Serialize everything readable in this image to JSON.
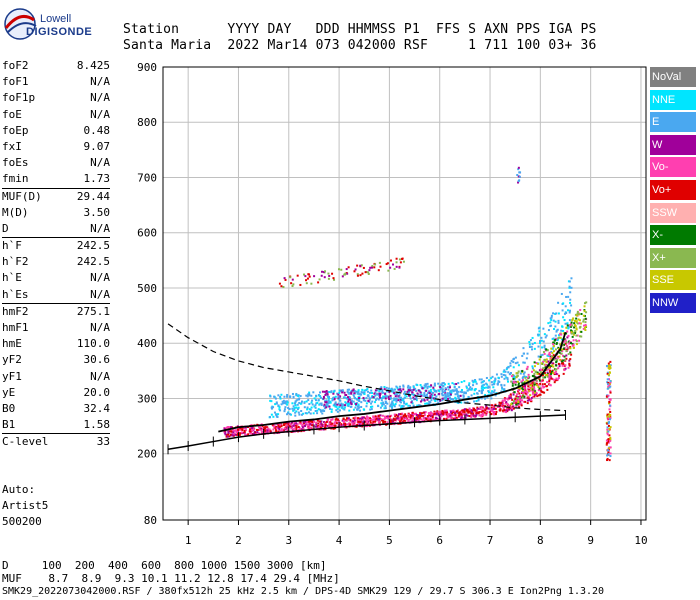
{
  "logo": {
    "brand": "Lowell",
    "product": "DIGISONDE"
  },
  "header": {
    "labels": "Station      YYYY DAY   DDD HHMMSS P1  FFS S AXN PPS IGA PS",
    "values": "Santa Maria  2022 Mar14 073 042000 RSF     1 711 100 03+ 36"
  },
  "params": [
    {
      "name": "foF2",
      "value": "8.425"
    },
    {
      "name": "foF1",
      "value": "N/A"
    },
    {
      "name": "foF1p",
      "value": "N/A"
    },
    {
      "name": "foE",
      "value": "N/A"
    },
    {
      "name": "foEp",
      "value": "0.48"
    },
    {
      "name": "fxI",
      "value": "9.07"
    },
    {
      "name": "foEs",
      "value": "N/A"
    },
    {
      "name": "fmin",
      "value": "1.73"
    },
    {
      "name": "MUF(D)",
      "value": "29.44",
      "sep": true
    },
    {
      "name": "M(D)",
      "value": "3.50"
    },
    {
      "name": "D",
      "value": "N/A"
    },
    {
      "name": "h`F",
      "value": "242.5",
      "sep": true
    },
    {
      "name": "h`F2",
      "value": "242.5"
    },
    {
      "name": "h`E",
      "value": "N/A"
    },
    {
      "name": "h`Es",
      "value": "N/A"
    },
    {
      "name": "hmF2",
      "value": "275.1",
      "sep": true
    },
    {
      "name": "hmF1",
      "value": "N/A"
    },
    {
      "name": "hmE",
      "value": "110.0"
    },
    {
      "name": "yF2",
      "value": "30.6"
    },
    {
      "name": "yF1",
      "value": "N/A"
    },
    {
      "name": "yE",
      "value": "20.0"
    },
    {
      "name": "B0",
      "value": "32.4"
    },
    {
      "name": "B1",
      "value": "1.58"
    },
    {
      "name": "C-level",
      "value": "33",
      "sep": true
    }
  ],
  "auto": {
    "line1": "Auto:",
    "line2": "Artist5",
    "line3": "500200"
  },
  "legend": [
    {
      "label": "NoVal",
      "color": "#808080"
    },
    {
      "label": "NNE",
      "color": "#00e5ff"
    },
    {
      "label": "E",
      "color": "#4aa8f0"
    },
    {
      "label": "W",
      "color": "#a0009a"
    },
    {
      "label": "Vo-",
      "color": "#ff3fb0"
    },
    {
      "label": "Vo+",
      "color": "#e00000"
    },
    {
      "label": "SSW",
      "color": "#ffb0b0"
    },
    {
      "label": "X-",
      "color": "#007a00"
    },
    {
      "label": "X+",
      "color": "#8ab850"
    },
    {
      "label": "SSE",
      "color": "#c8c800"
    },
    {
      "label": "NNW",
      "color": "#2020c8"
    }
  ],
  "footer": {
    "line1": "D     100  200  400  600  800 1000 1500 3000 [km]",
    "line2": "MUF    8.7  8.9  9.3 10.1 11.2 12.8 17.4 29.4 [MHz]",
    "line3": "SMK29_2022073042000.RSF / 380fx512h 25 kHz 2.5 km / DPS-4D SMK29 129 / 29.7 S 306.3 E Ion2Png 1.3.20"
  },
  "chart_data": {
    "type": "scatter",
    "xlim": [
      0.5,
      10.1
    ],
    "ylim": [
      80,
      900
    ],
    "xticks": [
      1,
      2,
      3,
      4,
      5,
      6,
      7,
      8,
      9,
      10
    ],
    "yticks": [
      80,
      200,
      300,
      400,
      500,
      600,
      700,
      800,
      900
    ],
    "grid": true,
    "legend_position": "right",
    "trace_F2": {
      "x": [
        1.6,
        2.0,
        2.5,
        3.0,
        3.5,
        4.0,
        4.5,
        5.0,
        5.5,
        6.0,
        6.5,
        7.0,
        7.5,
        8.0,
        8.2,
        8.4,
        8.5
      ],
      "y": [
        240,
        248,
        252,
        258,
        262,
        268,
        272,
        278,
        284,
        290,
        298,
        305,
        318,
        340,
        365,
        390,
        420
      ]
    },
    "profile_line": {
      "x": [
        0.6,
        1.0,
        1.5,
        2.0,
        2.5,
        3.0,
        3.5,
        4.0,
        4.5,
        5.0,
        5.5,
        6.0,
        6.5,
        7.0,
        7.5,
        8.0,
        8.5
      ],
      "y": [
        208,
        214,
        222,
        230,
        236,
        240,
        244,
        248,
        251,
        254,
        257,
        260,
        262,
        264,
        266,
        268,
        270
      ]
    },
    "model_curve": {
      "x": [
        0.6,
        1.0,
        1.5,
        2.0,
        2.5,
        3.0,
        3.5,
        4.0,
        4.5,
        5.0,
        5.5,
        6.0,
        6.5,
        7.0,
        7.5,
        8.0,
        8.5
      ],
      "y": [
        435,
        410,
        385,
        368,
        356,
        348,
        340,
        332,
        322,
        314,
        305,
        298,
        292,
        288,
        283,
        280,
        278
      ]
    }
  }
}
